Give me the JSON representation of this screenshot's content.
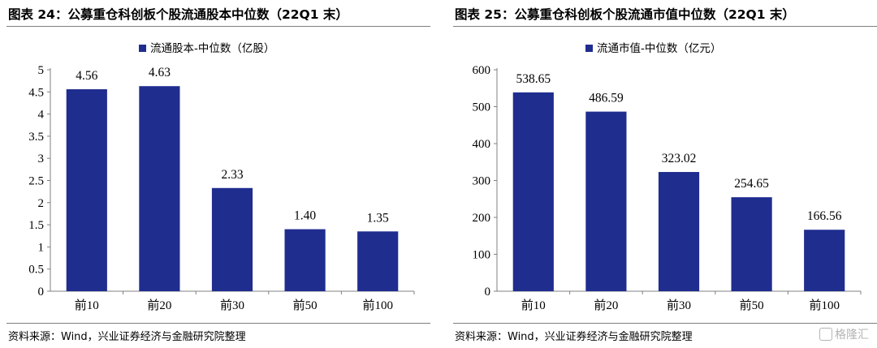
{
  "panels": [
    {
      "title": "图表 24：公募重仓科创板个股流通股本中位数（22Q1 末）",
      "source": "资料来源：Wind，兴业证券经济与金融研究院整理"
    },
    {
      "title": "图表 25：公募重仓科创板个股流通市值中位数（22Q1 末）",
      "source": "资料来源：Wind，兴业证券经济与金融研究院整理"
    }
  ],
  "watermark": {
    "text": "格隆汇",
    "icon": "glh-logo-icon"
  },
  "chart_data": [
    {
      "type": "bar",
      "categories": [
        "前10",
        "前20",
        "前30",
        "前50",
        "前100"
      ],
      "series": [
        {
          "name": "流通股本-中位数（亿股）",
          "values": [
            4.56,
            4.63,
            2.33,
            1.4,
            1.35
          ],
          "labels": [
            "4.56",
            "4.63",
            "2.33",
            "1.40",
            "1.35"
          ]
        }
      ],
      "ylim": [
        0,
        5
      ],
      "yticks": [
        "0",
        "0.5",
        "1",
        "1.5",
        "2",
        "2.5",
        "3",
        "3.5",
        "4",
        "4.5",
        "5"
      ],
      "ytick_values": [
        0,
        0.5,
        1,
        1.5,
        2,
        2.5,
        3,
        3.5,
        4,
        4.5,
        5
      ],
      "legend_position": "top-center",
      "grid": false,
      "bar_color": "#1f2d8f"
    },
    {
      "type": "bar",
      "categories": [
        "前10",
        "前20",
        "前30",
        "前50",
        "前100"
      ],
      "series": [
        {
          "name": "流通市值-中位数（亿元）",
          "values": [
            538.65,
            486.59,
            323.02,
            254.65,
            166.56
          ],
          "labels": [
            "538.65",
            "486.59",
            "323.02",
            "254.65",
            "166.56"
          ]
        }
      ],
      "ylim": [
        0,
        600
      ],
      "yticks": [
        "0",
        "100",
        "200",
        "300",
        "400",
        "500",
        "600"
      ],
      "ytick_values": [
        0,
        100,
        200,
        300,
        400,
        500,
        600
      ],
      "legend_position": "top-center",
      "grid": false,
      "bar_color": "#1f2d8f"
    }
  ]
}
